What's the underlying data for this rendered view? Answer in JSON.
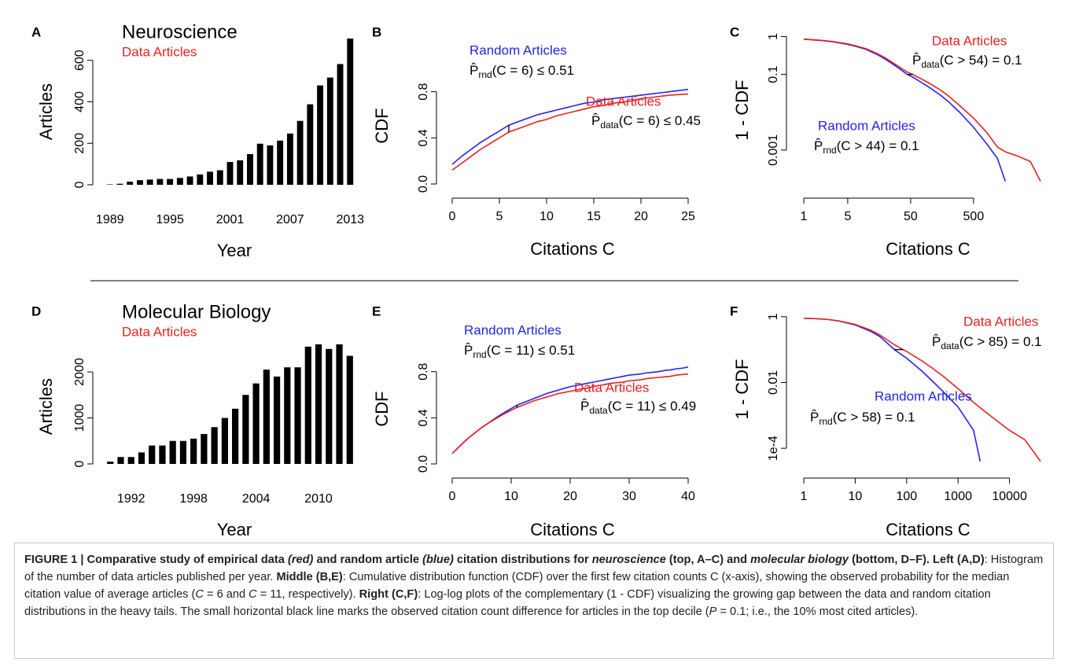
{
  "chart_data": [
    {
      "type": "bar",
      "panel": "A",
      "title": "Neuroscience",
      "subtitle": "Data Articles",
      "subtitle_color": "#e8211e",
      "xlabel": "Year",
      "ylabel": "Articles",
      "color": "#000000",
      "x": [
        1989,
        1990,
        1991,
        1992,
        1993,
        1994,
        1995,
        1996,
        1997,
        1998,
        1999,
        2000,
        2001,
        2002,
        2003,
        2004,
        2005,
        2006,
        2007,
        2008,
        2009,
        2010,
        2011,
        2012,
        2013
      ],
      "values": [
        2,
        5,
        15,
        22,
        25,
        28,
        28,
        33,
        40,
        50,
        63,
        70,
        110,
        118,
        148,
        198,
        190,
        213,
        247,
        308,
        388,
        479,
        517,
        582,
        705
      ],
      "xlim": [
        1988,
        2014
      ],
      "xticks": [
        1989,
        1995,
        2001,
        2007,
        2013
      ],
      "ylim": [
        0,
        705
      ],
      "yticks": [
        0,
        200,
        400,
        600
      ]
    },
    {
      "type": "line",
      "panel": "B",
      "xlabel": "Citations  C",
      "ylabel": "CDF",
      "marker_x": 6,
      "x": [
        0,
        1,
        2,
        3,
        4,
        5,
        6,
        7,
        8,
        9,
        10,
        11,
        12,
        13,
        14,
        15,
        16,
        17,
        18,
        19,
        20,
        21,
        22,
        23,
        24,
        25
      ],
      "series": [
        {
          "name": "Random Articles",
          "color": "#2424ee",
          "estimate": {
            "text": "P̂",
            "sub": "rnd",
            "rest": "(C = 6) ≤ 0.51"
          },
          "values": [
            0.17,
            0.24,
            0.3,
            0.36,
            0.41,
            0.46,
            0.51,
            0.54,
            0.57,
            0.6,
            0.62,
            0.64,
            0.66,
            0.68,
            0.7,
            0.71,
            0.73,
            0.74,
            0.75,
            0.76,
            0.77,
            0.78,
            0.79,
            0.8,
            0.81,
            0.82
          ]
        },
        {
          "name": "Data Articles",
          "color": "#e8211e",
          "estimate": {
            "text": "P̂",
            "sub": "data",
            "rest": "(C = 6) ≤ 0.45"
          },
          "values": [
            0.12,
            0.18,
            0.24,
            0.3,
            0.35,
            0.4,
            0.45,
            0.48,
            0.51,
            0.54,
            0.56,
            0.59,
            0.61,
            0.63,
            0.65,
            0.67,
            0.68,
            0.7,
            0.71,
            0.72,
            0.74,
            0.75,
            0.76,
            0.77,
            0.775,
            0.78
          ]
        }
      ],
      "xlim": [
        0,
        25
      ],
      "xticks": [
        0,
        5,
        10,
        15,
        20,
        25
      ],
      "ylim": [
        0,
        0.9
      ],
      "yticks": [
        {
          "value": 0,
          "label": "0.0"
        },
        0.4,
        0.8
      ]
    },
    {
      "type": "ccdf",
      "panel": "C",
      "xlabel": "Citations  C",
      "ylabel": "1 - CDF",
      "xlog": true,
      "ylog": true,
      "marker_y": 0.1,
      "x": [
        1,
        2,
        3,
        5,
        7,
        10,
        15,
        20,
        30,
        44,
        54,
        70,
        100,
        150,
        200,
        300,
        500,
        800,
        1200,
        1600,
        2500,
        4000,
        5800
      ],
      "series": [
        {
          "name": "Random Articles",
          "color": "#2424ee",
          "estimate": {
            "text": "P̂",
            "sub": "rnd",
            "rest": "(C > 44) = 0.1"
          },
          "values": [
            0.85,
            0.78,
            0.72,
            0.62,
            0.54,
            0.45,
            0.33,
            0.25,
            0.16,
            0.1,
            0.085,
            0.065,
            0.045,
            0.028,
            0.019,
            0.01,
            0.004,
            0.0015,
            0.0006,
            0.00015,
            null,
            null,
            null
          ]
        },
        {
          "name": "Data Articles",
          "color": "#e8211e",
          "estimate": {
            "text": "P̂",
            "sub": "data",
            "rest": "(C > 54) = 0.1"
          },
          "values": [
            0.86,
            0.79,
            0.73,
            0.64,
            0.56,
            0.47,
            0.35,
            0.27,
            0.175,
            0.115,
            0.1,
            0.08,
            0.058,
            0.038,
            0.027,
            0.015,
            0.007,
            0.003,
            0.0012,
            0.0009,
            0.0007,
            0.0005,
            0.00015
          ]
        }
      ],
      "xlim": [
        1,
        6500
      ],
      "xticks": [
        1,
        5,
        50,
        500
      ],
      "ylim": [
        0.0001,
        1.3
      ],
      "yticks": [
        1,
        0.1,
        0.001
      ]
    },
    {
      "type": "bar",
      "panel": "D",
      "title": "Molecular Biology",
      "subtitle": "Data Articles",
      "subtitle_color": "#e8211e",
      "xlabel": "Year",
      "ylabel": "Articles",
      "color": "#000000",
      "x": [
        1990,
        1991,
        1992,
        1993,
        1994,
        1995,
        1996,
        1997,
        1998,
        1999,
        2000,
        2001,
        2002,
        2003,
        2004,
        2005,
        2006,
        2007,
        2008,
        2009,
        2010,
        2011,
        2012,
        2013
      ],
      "values": [
        50,
        150,
        150,
        250,
        400,
        400,
        500,
        500,
        550,
        650,
        800,
        1000,
        1200,
        1500,
        1750,
        2050,
        1900,
        2100,
        2100,
        2550,
        2600,
        2500,
        2600,
        2350
      ],
      "xlim": [
        1989,
        2014
      ],
      "xticks": [
        1992,
        1998,
        2004,
        2010
      ],
      "ylim": [
        0,
        2650
      ],
      "yticks": [
        0,
        1000,
        2000
      ]
    },
    {
      "type": "line",
      "panel": "E",
      "xlabel": "Citations  C",
      "ylabel": "CDF",
      "marker_x": 11,
      "x": [
        0,
        1,
        2,
        3,
        4,
        5,
        6,
        7,
        8,
        9,
        10,
        11,
        12,
        13,
        14,
        15,
        16,
        17,
        18,
        19,
        20,
        21,
        22,
        23,
        24,
        25,
        26,
        27,
        28,
        29,
        30,
        31,
        32,
        33,
        34,
        35,
        36,
        37,
        38,
        39,
        40
      ],
      "series": [
        {
          "name": "Random Articles",
          "color": "#2424ee",
          "estimate": {
            "text": "P̂",
            "sub": "rnd",
            "rest": "(C = 11) ≤ 0.51"
          },
          "values": [
            0.09,
            0.14,
            0.19,
            0.235,
            0.275,
            0.315,
            0.35,
            0.385,
            0.42,
            0.45,
            0.48,
            0.51,
            0.53,
            0.55,
            0.57,
            0.59,
            0.61,
            0.625,
            0.64,
            0.655,
            0.67,
            0.68,
            0.69,
            0.7,
            0.71,
            0.72,
            0.73,
            0.74,
            0.75,
            0.76,
            0.77,
            0.775,
            0.78,
            0.79,
            0.795,
            0.8,
            0.81,
            0.815,
            0.825,
            0.83,
            0.84
          ]
        },
        {
          "name": "Data Articles",
          "color": "#e8211e",
          "estimate": {
            "text": "P̂",
            "sub": "data",
            "rest": "(C = 11) ≤ 0.49"
          },
          "values": [
            0.09,
            0.14,
            0.19,
            0.235,
            0.275,
            0.315,
            0.35,
            0.38,
            0.41,
            0.44,
            0.465,
            0.49,
            0.51,
            0.53,
            0.55,
            0.565,
            0.58,
            0.595,
            0.61,
            0.62,
            0.63,
            0.64,
            0.65,
            0.66,
            0.67,
            0.68,
            0.69,
            0.7,
            0.705,
            0.71,
            0.72,
            0.725,
            0.73,
            0.74,
            0.745,
            0.75,
            0.755,
            0.76,
            0.77,
            0.775,
            0.78
          ]
        }
      ],
      "xlim": [
        0,
        40
      ],
      "xticks": [
        0,
        10,
        20,
        30,
        40
      ],
      "ylim": [
        0,
        0.9
      ],
      "yticks": [
        {
          "value": 0,
          "label": "0.0"
        },
        0.4,
        0.8
      ]
    },
    {
      "type": "ccdf",
      "panel": "F",
      "xlabel": "Citations  C",
      "ylabel": "1 - CDF",
      "xlog": true,
      "ylog": true,
      "marker_y": 0.1,
      "x": [
        1,
        2,
        3,
        5,
        10,
        20,
        30,
        58,
        85,
        100,
        200,
        300,
        500,
        1000,
        2000,
        2700,
        5000,
        10000,
        20000,
        40000
      ],
      "series": [
        {
          "name": "Random Articles",
          "color": "#2424ee",
          "estimate": {
            "text": "P̂",
            "sub": "rnd",
            "rest": "(C > 58) = 0.1"
          },
          "values": [
            0.9,
            0.86,
            0.82,
            0.73,
            0.56,
            0.36,
            0.25,
            0.1,
            0.065,
            0.055,
            0.022,
            0.012,
            0.0055,
            0.0018,
            0.00035,
            4e-05,
            null,
            null,
            null,
            null
          ]
        },
        {
          "name": "Data Articles",
          "color": "#e8211e",
          "estimate": {
            "text": "P̂",
            "sub": "data",
            "rest": "(C > 85) = 0.1"
          },
          "values": [
            0.9,
            0.86,
            0.82,
            0.74,
            0.58,
            0.39,
            0.28,
            0.14,
            0.1,
            0.088,
            0.045,
            0.029,
            0.016,
            0.0065,
            0.0025,
            0.0017,
            0.0008,
            0.00035,
            0.00018,
            4e-05
          ]
        }
      ],
      "xlim": [
        1,
        40000
      ],
      "xticks": [
        1,
        10,
        100,
        1000,
        10000
      ],
      "ylim": [
        3e-05,
        1.3
      ],
      "yticks": [
        1,
        0.01,
        {
          "value": 0.0001,
          "label": "1e-4"
        }
      ]
    }
  ],
  "caption": [
    {
      "text": "FIGURE 1 | Comparative study of empirical data ",
      "style": "bold"
    },
    {
      "text": "(red)",
      "style": "bold italic"
    },
    {
      "text": " and random article ",
      "style": "bold"
    },
    {
      "text": "(blue)",
      "style": "bold italic"
    },
    {
      "text": " citation distributions for ",
      "style": "bold"
    },
    {
      "text": "neuroscience",
      "style": "bold italic"
    },
    {
      "text": " (top, A–C) and ",
      "style": "bold"
    },
    {
      "text": "molecular biology",
      "style": "bold italic"
    },
    {
      "text": " (bottom, D–F). Left (A,D)",
      "style": "bold"
    },
    {
      "text": ": Histogram of the number of data articles published per year. ",
      "style": "normal"
    },
    {
      "text": "Middle (B,E)",
      "style": "bold"
    },
    {
      "text": ": Cumulative distribution function (CDF) over the first few citation counts C (x-axis), showing the observed probability for the median citation value of average articles (",
      "style": "normal"
    },
    {
      "text": "C",
      "style": "italic"
    },
    {
      "text": " = 6 and ",
      "style": "normal"
    },
    {
      "text": "C",
      "style": "italic"
    },
    {
      "text": " = 11, respectively). ",
      "style": "normal"
    },
    {
      "text": "Right (C,F)",
      "style": "bold"
    },
    {
      "text": ": Log-log plots of the complementary (1 - CDF) visualizing the growing gap between the data and random citation distributions in the heavy tails. The small horizontal black line marks the observed citation count difference for articles in the top decile (",
      "style": "normal"
    },
    {
      "text": "P",
      "style": "italic"
    },
    {
      "text": " = 0.1; i.e., the 10% most cited articles).",
      "style": "normal"
    }
  ]
}
